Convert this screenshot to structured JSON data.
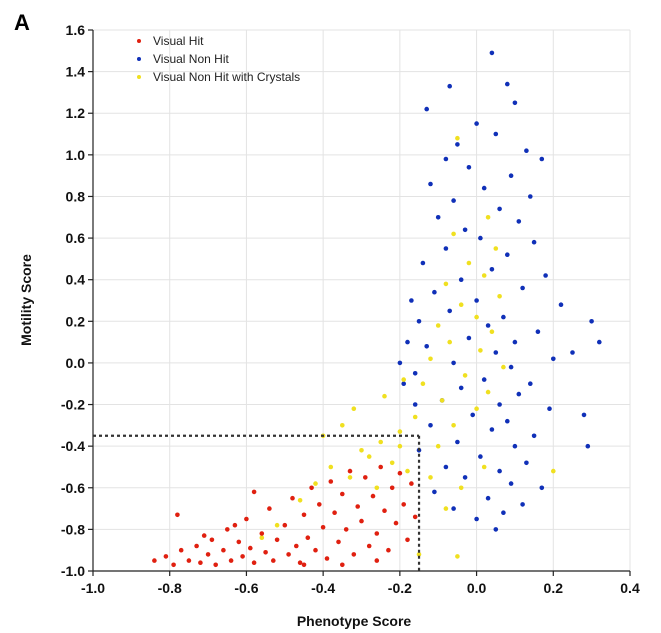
{
  "panel_label": "A",
  "chart_data": {
    "type": "scatter",
    "title": "",
    "xlabel": "Phenotype Score",
    "ylabel": "Motility Score",
    "xlim": [
      -1.0,
      0.4
    ],
    "ylim": [
      -1.0,
      1.6
    ],
    "x_ticks": [
      "-1.0",
      "-0.8",
      "-0.6",
      "-0.4",
      "-0.2",
      "0.0",
      "0.2",
      "0.4"
    ],
    "y_ticks": [
      "-1.0",
      "-0.8",
      "-0.6",
      "-0.4",
      "-0.2",
      "0.0",
      "0.2",
      "0.4",
      "0.6",
      "0.8",
      "1.0",
      "1.2",
      "1.4",
      "1.6"
    ],
    "grid": true,
    "legend_position": "top-left",
    "thresholds": {
      "phenotype": -0.15,
      "motility": -0.35
    },
    "series": [
      {
        "name": "Visual Hit",
        "color": "#e02010",
        "points": [
          [
            -0.84,
            -0.95
          ],
          [
            -0.81,
            -0.93
          ],
          [
            -0.79,
            -0.97
          ],
          [
            -0.77,
            -0.9
          ],
          [
            -0.78,
            -0.73
          ],
          [
            -0.75,
            -0.95
          ],
          [
            -0.73,
            -0.88
          ],
          [
            -0.72,
            -0.96
          ],
          [
            -0.7,
            -0.92
          ],
          [
            -0.69,
            -0.85
          ],
          [
            -0.68,
            -0.97
          ],
          [
            -0.66,
            -0.9
          ],
          [
            -0.65,
            -0.8
          ],
          [
            -0.64,
            -0.95
          ],
          [
            -0.62,
            -0.86
          ],
          [
            -0.61,
            -0.93
          ],
          [
            -0.6,
            -0.75
          ],
          [
            -0.59,
            -0.89
          ],
          [
            -0.58,
            -0.96
          ],
          [
            -0.56,
            -0.82
          ],
          [
            -0.55,
            -0.91
          ],
          [
            -0.54,
            -0.7
          ],
          [
            -0.53,
            -0.95
          ],
          [
            -0.52,
            -0.85
          ],
          [
            -0.5,
            -0.78
          ],
          [
            -0.49,
            -0.92
          ],
          [
            -0.48,
            -0.65
          ],
          [
            -0.47,
            -0.88
          ],
          [
            -0.46,
            -0.96
          ],
          [
            -0.45,
            -0.73
          ],
          [
            -0.44,
            -0.84
          ],
          [
            -0.43,
            -0.6
          ],
          [
            -0.42,
            -0.9
          ],
          [
            -0.41,
            -0.68
          ],
          [
            -0.4,
            -0.79
          ],
          [
            -0.39,
            -0.94
          ],
          [
            -0.38,
            -0.57
          ],
          [
            -0.37,
            -0.72
          ],
          [
            -0.36,
            -0.86
          ],
          [
            -0.35,
            -0.63
          ],
          [
            -0.34,
            -0.8
          ],
          [
            -0.33,
            -0.52
          ],
          [
            -0.32,
            -0.92
          ],
          [
            -0.31,
            -0.69
          ],
          [
            -0.3,
            -0.76
          ],
          [
            -0.29,
            -0.55
          ],
          [
            -0.28,
            -0.88
          ],
          [
            -0.27,
            -0.64
          ],
          [
            -0.26,
            -0.82
          ],
          [
            -0.25,
            -0.5
          ],
          [
            -0.24,
            -0.71
          ],
          [
            -0.23,
            -0.9
          ],
          [
            -0.22,
            -0.6
          ],
          [
            -0.21,
            -0.77
          ],
          [
            -0.2,
            -0.53
          ],
          [
            -0.19,
            -0.68
          ],
          [
            -0.18,
            -0.85
          ],
          [
            -0.17,
            -0.58
          ],
          [
            -0.16,
            -0.74
          ],
          [
            -0.58,
            -0.62
          ],
          [
            -0.63,
            -0.78
          ],
          [
            -0.71,
            -0.83
          ],
          [
            -0.35,
            -0.97
          ],
          [
            -0.45,
            -0.97
          ],
          [
            -0.26,
            -0.95
          ]
        ]
      },
      {
        "name": "Visual Non Hit",
        "color": "#1030b8",
        "points": [
          [
            0.04,
            1.49
          ],
          [
            -0.07,
            1.33
          ],
          [
            0.08,
            1.34
          ],
          [
            0.1,
            1.25
          ],
          [
            -0.13,
            1.22
          ],
          [
            0.0,
            1.15
          ],
          [
            -0.05,
            1.05
          ],
          [
            0.05,
            1.1
          ],
          [
            -0.08,
            0.98
          ],
          [
            0.13,
            1.02
          ],
          [
            0.17,
            0.98
          ],
          [
            -0.02,
            0.94
          ],
          [
            0.09,
            0.9
          ],
          [
            -0.12,
            0.86
          ],
          [
            0.02,
            0.84
          ],
          [
            0.14,
            0.8
          ],
          [
            -0.06,
            0.78
          ],
          [
            0.06,
            0.74
          ],
          [
            -0.1,
            0.7
          ],
          [
            0.11,
            0.68
          ],
          [
            -0.03,
            0.64
          ],
          [
            0.01,
            0.6
          ],
          [
            0.15,
            0.58
          ],
          [
            -0.08,
            0.55
          ],
          [
            0.08,
            0.52
          ],
          [
            -0.14,
            0.48
          ],
          [
            0.04,
            0.45
          ],
          [
            0.18,
            0.42
          ],
          [
            -0.04,
            0.4
          ],
          [
            0.12,
            0.36
          ],
          [
            -0.11,
            0.34
          ],
          [
            0.0,
            0.3
          ],
          [
            0.22,
            0.28
          ],
          [
            -0.07,
            0.25
          ],
          [
            0.07,
            0.22
          ],
          [
            -0.15,
            0.2
          ],
          [
            0.03,
            0.18
          ],
          [
            0.16,
            0.15
          ],
          [
            -0.02,
            0.12
          ],
          [
            0.1,
            0.1
          ],
          [
            -0.13,
            0.08
          ],
          [
            0.05,
            0.05
          ],
          [
            0.2,
            0.02
          ],
          [
            -0.06,
            0.0
          ],
          [
            0.09,
            -0.02
          ],
          [
            -0.16,
            -0.05
          ],
          [
            0.02,
            -0.08
          ],
          [
            0.14,
            -0.1
          ],
          [
            -0.04,
            -0.12
          ],
          [
            0.11,
            -0.15
          ],
          [
            -0.09,
            -0.18
          ],
          [
            0.06,
            -0.2
          ],
          [
            0.19,
            -0.22
          ],
          [
            -0.01,
            -0.25
          ],
          [
            0.08,
            -0.28
          ],
          [
            -0.12,
            -0.3
          ],
          [
            0.04,
            -0.32
          ],
          [
            0.15,
            -0.35
          ],
          [
            -0.05,
            -0.38
          ],
          [
            0.1,
            -0.4
          ],
          [
            -0.15,
            -0.42
          ],
          [
            0.01,
            -0.45
          ],
          [
            0.13,
            -0.48
          ],
          [
            -0.08,
            -0.5
          ],
          [
            0.06,
            -0.52
          ],
          [
            -0.03,
            -0.55
          ],
          [
            0.09,
            -0.58
          ],
          [
            0.17,
            -0.6
          ],
          [
            -0.11,
            -0.62
          ],
          [
            0.03,
            -0.65
          ],
          [
            0.12,
            -0.68
          ],
          [
            -0.06,
            -0.7
          ],
          [
            0.07,
            -0.72
          ],
          [
            0.0,
            -0.75
          ],
          [
            0.05,
            -0.8
          ],
          [
            0.32,
            0.1
          ],
          [
            0.3,
            0.2
          ],
          [
            0.29,
            -0.4
          ],
          [
            0.28,
            -0.25
          ],
          [
            0.25,
            0.05
          ],
          [
            -0.18,
            0.1
          ],
          [
            -0.19,
            -0.1
          ],
          [
            -0.17,
            0.3
          ],
          [
            -0.2,
            0.0
          ],
          [
            -0.16,
            -0.2
          ]
        ]
      },
      {
        "name": "Visual Non Hit with Crystals",
        "color": "#f0e020",
        "points": [
          [
            -0.05,
            1.08
          ],
          [
            0.03,
            0.7
          ],
          [
            -0.06,
            0.62
          ],
          [
            0.05,
            0.55
          ],
          [
            -0.02,
            0.48
          ],
          [
            0.02,
            0.42
          ],
          [
            -0.08,
            0.38
          ],
          [
            0.06,
            0.32
          ],
          [
            -0.04,
            0.28
          ],
          [
            0.0,
            0.22
          ],
          [
            -0.1,
            0.18
          ],
          [
            0.04,
            0.15
          ],
          [
            -0.07,
            0.1
          ],
          [
            0.01,
            0.06
          ],
          [
            -0.12,
            0.02
          ],
          [
            0.07,
            -0.02
          ],
          [
            -0.03,
            -0.06
          ],
          [
            -0.14,
            -0.1
          ],
          [
            0.03,
            -0.14
          ],
          [
            -0.09,
            -0.18
          ],
          [
            0.0,
            -0.22
          ],
          [
            -0.16,
            -0.26
          ],
          [
            -0.06,
            -0.3
          ],
          [
            -0.2,
            -0.33
          ],
          [
            -0.25,
            -0.38
          ],
          [
            -0.3,
            -0.42
          ],
          [
            -0.35,
            -0.3
          ],
          [
            -0.28,
            -0.45
          ],
          [
            -0.22,
            -0.48
          ],
          [
            -0.38,
            -0.5
          ],
          [
            -0.18,
            -0.52
          ],
          [
            -0.33,
            -0.55
          ],
          [
            -0.42,
            -0.58
          ],
          [
            -0.26,
            -0.6
          ],
          [
            -0.46,
            -0.66
          ],
          [
            -0.2,
            -0.4
          ],
          [
            -0.12,
            -0.55
          ],
          [
            -0.08,
            -0.7
          ],
          [
            -0.04,
            -0.6
          ],
          [
            0.02,
            -0.5
          ],
          [
            -0.4,
            -0.35
          ],
          [
            -0.32,
            -0.22
          ],
          [
            -0.52,
            -0.78
          ],
          [
            -0.56,
            -0.84
          ],
          [
            -0.1,
            -0.4
          ],
          [
            0.2,
            -0.52
          ],
          [
            -0.24,
            -0.16
          ],
          [
            -0.19,
            -0.08
          ],
          [
            -0.15,
            -0.92
          ],
          [
            -0.05,
            -0.93
          ]
        ]
      }
    ]
  }
}
